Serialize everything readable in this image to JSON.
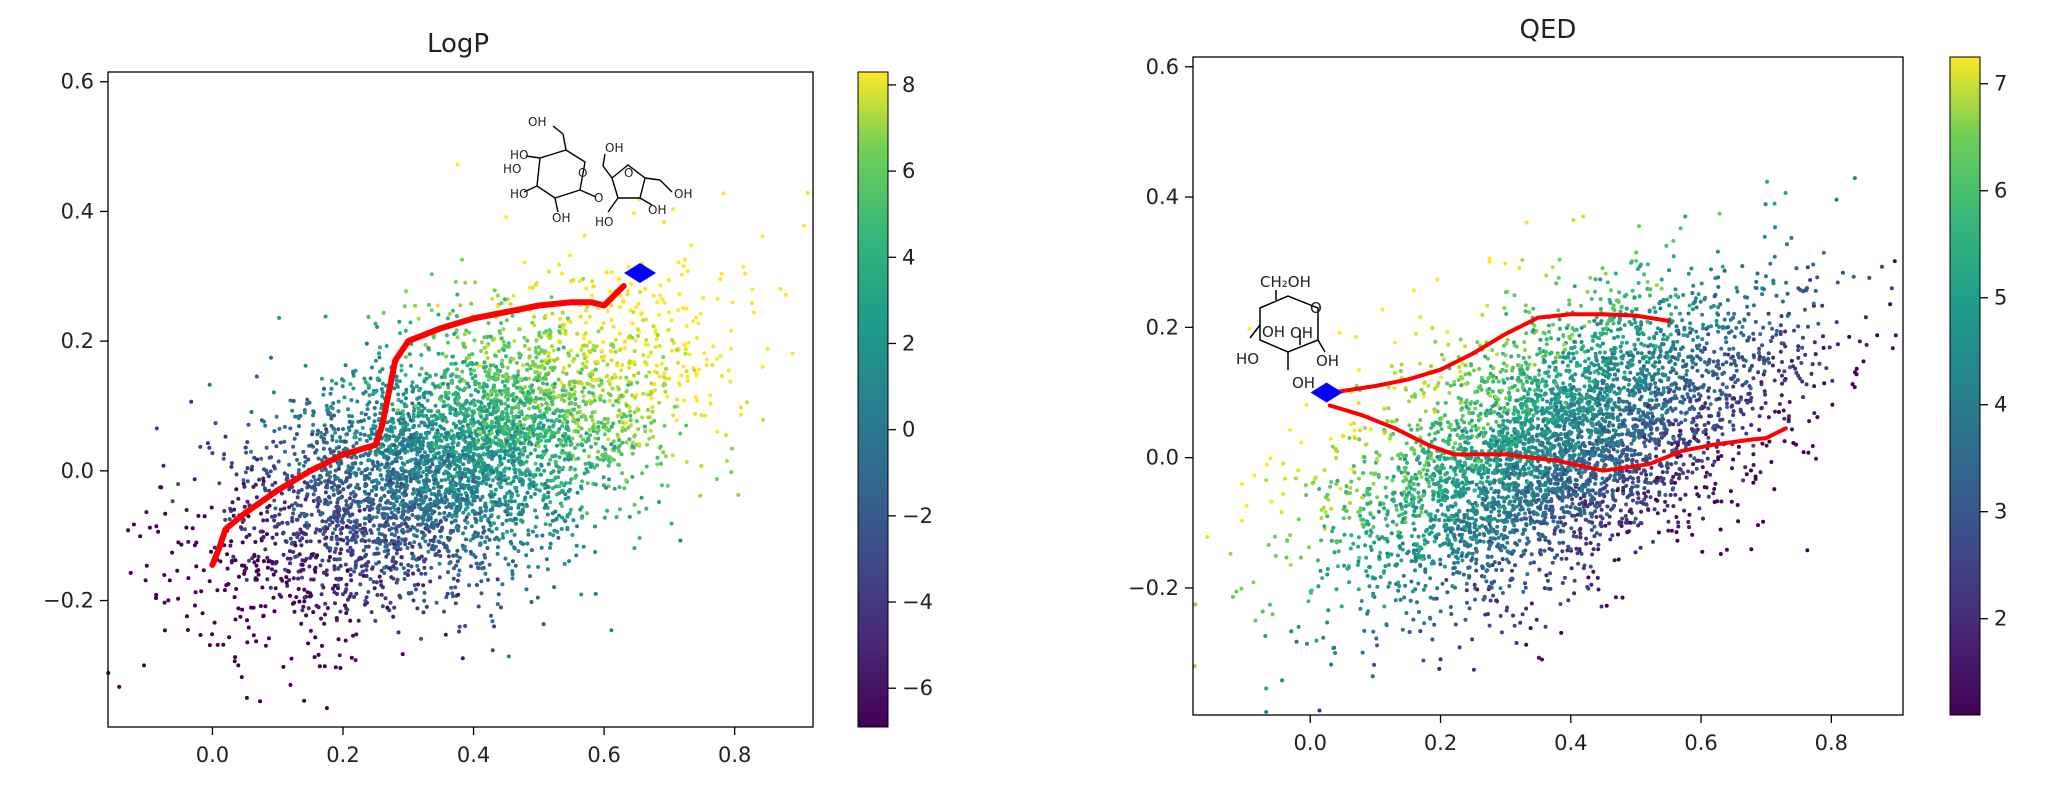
{
  "chart_data": [
    {
      "type": "scatter",
      "title": "LogP",
      "xlabel": "",
      "ylabel": "",
      "xlim": [
        -0.16,
        0.92
      ],
      "ylim": [
        -0.395,
        0.615
      ],
      "xticks": [
        0.0,
        0.2,
        0.4,
        0.6,
        0.8
      ],
      "xtick_labels": [
        "0.0",
        "0.2",
        "0.4",
        "0.6",
        "0.8"
      ],
      "yticks": [
        -0.2,
        0.0,
        0.2,
        0.4,
        0.6
      ],
      "ytick_labels": [
        "−0.2",
        "0.0",
        "0.2",
        "0.4",
        "0.6"
      ],
      "grid": false,
      "colormap": "viridis",
      "colorbar": {
        "range": [
          -6.9,
          8.3
        ],
        "ticks": [
          -6,
          -4,
          -2,
          0,
          2,
          4,
          6,
          8
        ],
        "tick_labels": [
          "−6",
          "−4",
          "−2",
          "0",
          "2",
          "4",
          "6",
          "8"
        ]
      },
      "cloud": {
        "center": [
          0.37,
          0.02
        ],
        "spread_x": 0.17,
        "spread_y": 0.115,
        "correlation": 0.55,
        "n_points": 4500
      },
      "color_gradient": "higher property values toward upper-right",
      "series": [
        {
          "kind": "path",
          "color": "#ff0000",
          "x": [
            0.0,
            0.01,
            0.02,
            0.05,
            0.1,
            0.15,
            0.2,
            0.25,
            0.26,
            0.27,
            0.28,
            0.3,
            0.35,
            0.4,
            0.45,
            0.5,
            0.55,
            0.58,
            0.6,
            0.63
          ],
          "y": [
            -0.145,
            -0.12,
            -0.09,
            -0.065,
            -0.03,
            0.0,
            0.025,
            0.04,
            0.07,
            0.12,
            0.17,
            0.2,
            0.22,
            0.235,
            0.245,
            0.255,
            0.26,
            0.26,
            0.255,
            0.285
          ]
        },
        {
          "kind": "marker",
          "marker": "diamond",
          "color": "#0000ff",
          "x": [
            0.655
          ],
          "y": [
            0.305
          ]
        }
      ],
      "inset": {
        "type": "molecule-sketch",
        "labels": [
          "OH",
          "HO",
          "HO",
          "HO",
          "OH",
          "O",
          "O",
          "O",
          "HO",
          "OH",
          "OH",
          "OH"
        ]
      }
    },
    {
      "type": "scatter",
      "title": "QED",
      "xlabel": "",
      "ylabel": "",
      "xlim": [
        -0.18,
        0.91
      ],
      "ylim": [
        -0.395,
        0.615
      ],
      "xticks": [
        0.0,
        0.2,
        0.4,
        0.6,
        0.8
      ],
      "xtick_labels": [
        "0.0",
        "0.2",
        "0.4",
        "0.6",
        "0.8"
      ],
      "yticks": [
        -0.2,
        0.0,
        0.2,
        0.4,
        0.6
      ],
      "ytick_labels": [
        "−0.2",
        "0.0",
        "0.2",
        "0.4",
        "0.6"
      ],
      "grid": false,
      "colormap": "viridis",
      "colorbar": {
        "range": [
          1.1,
          7.25
        ],
        "ticks": [
          2,
          3,
          4,
          5,
          6,
          7
        ],
        "tick_labels": [
          "2",
          "3",
          "4",
          "5",
          "6",
          "7"
        ]
      },
      "cloud": {
        "center": [
          0.38,
          0.02
        ],
        "spread_x": 0.17,
        "spread_y": 0.115,
        "correlation": 0.55,
        "n_points": 4500
      },
      "color_gradient": "higher property values toward upper-left",
      "series": [
        {
          "kind": "path",
          "color": "#ff0000",
          "x": [
            0.035,
            0.1,
            0.15,
            0.2,
            0.25,
            0.3,
            0.35,
            0.4,
            0.45,
            0.5,
            0.55
          ],
          "y": [
            0.1,
            0.11,
            0.12,
            0.135,
            0.16,
            0.19,
            0.215,
            0.22,
            0.22,
            0.218,
            0.21
          ]
        },
        {
          "kind": "path",
          "color": "#ff0000",
          "x": [
            0.03,
            0.08,
            0.13,
            0.18,
            0.22,
            0.3,
            0.38,
            0.45,
            0.52,
            0.57,
            0.62,
            0.68,
            0.7,
            0.73
          ],
          "y": [
            0.08,
            0.065,
            0.045,
            0.02,
            0.005,
            0.005,
            -0.005,
            -0.02,
            -0.01,
            0.01,
            0.02,
            0.028,
            0.03,
            0.045
          ]
        },
        {
          "kind": "marker",
          "marker": "diamond",
          "color": "#0000ff",
          "x": [
            0.025
          ],
          "y": [
            0.1
          ]
        }
      ],
      "inset": {
        "type": "molecule-sketch",
        "labels": [
          "CH₂OH",
          "O",
          "OH",
          "OH",
          "OH",
          "HO",
          "OH"
        ]
      }
    }
  ]
}
